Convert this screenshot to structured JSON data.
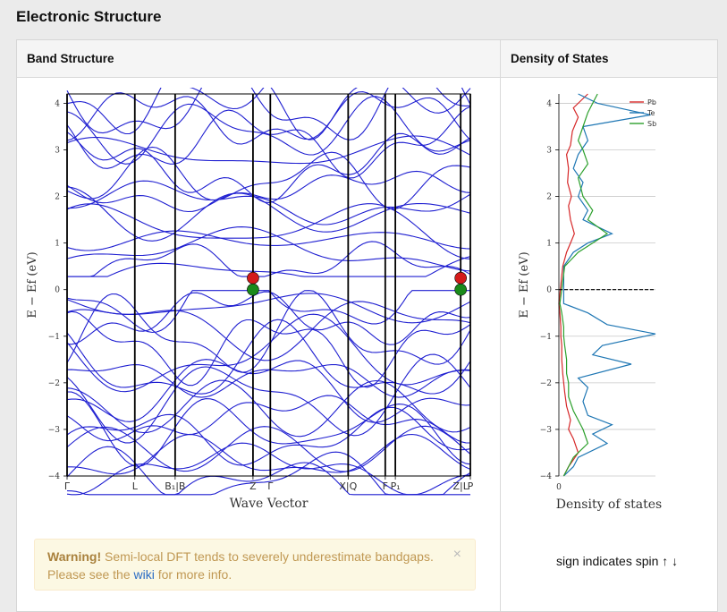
{
  "page": {
    "title": "Electronic Structure"
  },
  "tabs": {
    "band_structure": "Band Structure",
    "dos": "Density of States"
  },
  "alert": {
    "strong": "Warning!",
    "text": " Semi-local DFT tends to severely underestimate bandgaps. Please see the ",
    "link": "wiki",
    "tail": " for more info.",
    "close": "×"
  },
  "spin_note": "sign indicates spin ↑ ↓",
  "colors": {
    "bands": "#1f1fd1",
    "vbm": "#1a8a1a",
    "cbm": "#d41a1a",
    "pb": "#d62728",
    "te": "#1f77b4",
    "sb": "#2ca02c"
  },
  "chart_data": [
    {
      "type": "line",
      "title": "",
      "xlabel": "Wave Vector",
      "ylabel": "E − E$_f$ (eV)",
      "ylim": [
        -4,
        4.2
      ],
      "yticks": [
        -4,
        -3,
        -2,
        -1,
        0,
        1,
        2,
        3,
        4
      ],
      "ytick_labels": [
        "−4",
        "−3",
        "−2",
        "−1",
        "0",
        "1",
        "2",
        "3",
        "4"
      ],
      "kpoints": [
        "Γ",
        "L",
        "B₁|B",
        "Z",
        "Γ",
        "X|Q",
        "F",
        "P₁",
        "Z|L",
        "P"
      ],
      "kpoint_positions": [
        0,
        0.168,
        0.268,
        0.461,
        0.504,
        0.697,
        0.789,
        0.814,
        0.976,
        1.0
      ],
      "band_edge_points": [
        {
          "kind": "CBM",
          "x": 0.461,
          "y": 0.25
        },
        {
          "kind": "VBM",
          "x": 0.461,
          "y": 0.0
        },
        {
          "kind": "CBM",
          "x": 0.976,
          "y": 0.25
        },
        {
          "kind": "VBM",
          "x": 0.976,
          "y": 0.0
        }
      ]
    },
    {
      "type": "line",
      "title": "",
      "xlabel": "Density of states",
      "ylabel": "E − E$_f$ (eV)",
      "ylim": [
        -4,
        4.2
      ],
      "yticks": [
        -4,
        -3,
        -2,
        -1,
        0,
        1,
        2,
        3,
        4
      ],
      "ytick_labels": [
        "−4",
        "−3",
        "−2",
        "−1",
        "0",
        "1",
        "2",
        "3",
        "4"
      ],
      "xticks": [
        "0"
      ],
      "fermi_level": 0,
      "legend": "top-right",
      "series": [
        {
          "name": "Pb",
          "color": "#d62728",
          "energies": [
            -4,
            -3.8,
            -3.5,
            -3.2,
            -3,
            -2.8,
            -2.5,
            -2.2,
            -2,
            -1.8,
            -1.5,
            -1.2,
            -1,
            -0.8,
            -0.5,
            -0.3,
            0.5,
            0.8,
            1,
            1.2,
            1.5,
            1.8,
            2,
            2.3,
            2.6,
            2.9,
            3.1,
            3.4,
            3.7,
            3.9,
            4.2
          ],
          "values": [
            0.05,
            0.1,
            0.2,
            0.15,
            0.1,
            0.12,
            0.08,
            0.06,
            0.05,
            0.04,
            0.03,
            0.03,
            0.02,
            0.02,
            0.01,
            0,
            0.04,
            0.08,
            0.12,
            0.16,
            0.12,
            0.1,
            0.13,
            0.09,
            0.1,
            0.08,
            0.12,
            0.14,
            0.2,
            0.15,
            0.3
          ]
        },
        {
          "name": "Te",
          "color": "#1f77b4",
          "energies": [
            -4,
            -3.8,
            -3.6,
            -3.3,
            -3.1,
            -2.9,
            -2.7,
            -2.4,
            -2.1,
            -1.9,
            -1.6,
            -1.4,
            -1.2,
            -0.95,
            -0.75,
            -0.5,
            -0.3,
            0.5,
            0.8,
            1.0,
            1.2,
            1.5,
            1.7,
            2.0,
            2.3,
            2.6,
            2.9,
            3.2,
            3.5,
            3.75,
            4.0,
            4.2
          ],
          "values": [
            0.05,
            0.15,
            0.2,
            0.5,
            0.35,
            0.55,
            0.3,
            0.25,
            0.3,
            0.2,
            0.75,
            0.35,
            0.45,
            1.0,
            0.5,
            0.3,
            0.05,
            0.05,
            0.15,
            0.3,
            0.55,
            0.25,
            0.3,
            0.2,
            0.25,
            0.15,
            0.2,
            0.3,
            0.25,
            0.95,
            0.4,
            0.2
          ]
        },
        {
          "name": "Sb",
          "color": "#2ca02c",
          "energies": [
            -4,
            -3.8,
            -3.6,
            -3.3,
            -3.0,
            -2.8,
            -2.6,
            -2.3,
            -2.0,
            -1.8,
            -1.5,
            -1.2,
            -1.0,
            -0.8,
            -0.5,
            -0.3,
            0.5,
            0.8,
            1.0,
            1.2,
            1.5,
            1.7,
            2.0,
            2.4,
            2.7,
            3.0,
            3.2,
            3.5,
            3.8,
            4.0,
            4.2
          ],
          "values": [
            0.05,
            0.1,
            0.15,
            0.3,
            0.25,
            0.2,
            0.15,
            0.1,
            0.1,
            0.08,
            0.08,
            0.06,
            0.05,
            0.05,
            0.03,
            0.01,
            0.06,
            0.2,
            0.35,
            0.5,
            0.3,
            0.35,
            0.25,
            0.2,
            0.3,
            0.25,
            0.2,
            0.25,
            0.3,
            0.35,
            0.4
          ]
        }
      ]
    }
  ]
}
